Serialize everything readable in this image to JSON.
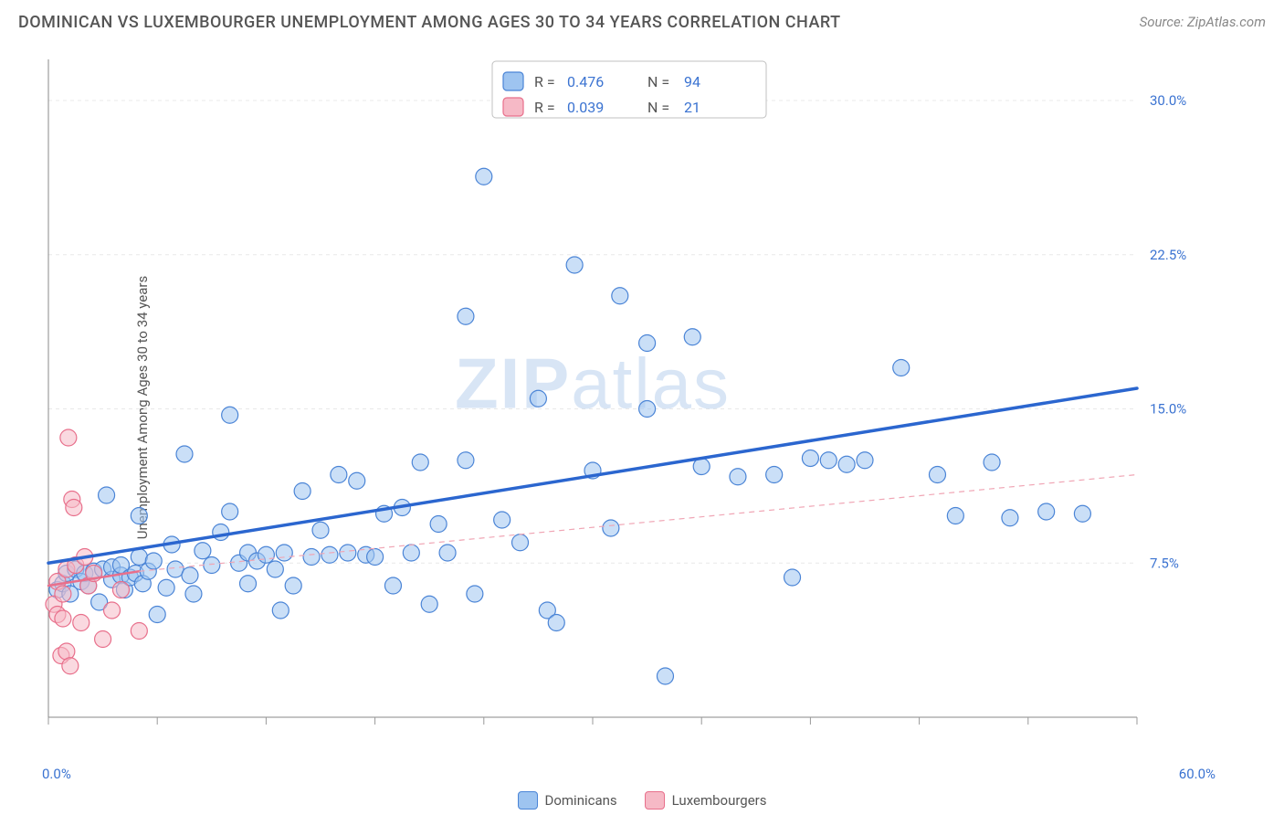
{
  "title": "DOMINICAN VS LUXEMBOURGER UNEMPLOYMENT AMONG AGES 30 TO 34 YEARS CORRELATION CHART",
  "source": "Source: ZipAtlas.com",
  "ylabel": "Unemployment Among Ages 30 to 34 years",
  "watermark": {
    "bold_part": "ZIP",
    "rest": "atlas"
  },
  "chart": {
    "type": "scatter",
    "background_color": "#ffffff",
    "grid_color": "#e8e8e8",
    "axis_color": "#888888",
    "tick_color": "#999999",
    "xlim": [
      0,
      60
    ],
    "ylim": [
      0,
      32
    ],
    "x_ticks_at": [
      0,
      6,
      12,
      18,
      24,
      30,
      36,
      42,
      48,
      54,
      60
    ],
    "y_grid_at": [
      7.5,
      15.0,
      22.5,
      30.0
    ],
    "y_tick_labels": [
      "7.5%",
      "15.0%",
      "22.5%",
      "30.0%"
    ],
    "x_min_label": "0.0%",
    "x_max_label": "60.0%",
    "label_color": "#3b73d1",
    "marker_radius": 9,
    "marker_opacity": 0.55
  },
  "series": [
    {
      "name": "Dominicans",
      "color_fill": "#9ec4f0",
      "color_stroke": "#4a84d6",
      "stat_color": "#3b73d1",
      "R": "0.476",
      "N": "94",
      "trend": {
        "x1": 0,
        "y1": 7.5,
        "x2": 60,
        "y2": 16.0,
        "width": 3.5,
        "dash": "",
        "color": "#2b66cf"
      },
      "points": [
        [
          0.5,
          6.2
        ],
        [
          0.8,
          6.5
        ],
        [
          1.0,
          7.0
        ],
        [
          1.2,
          6.0
        ],
        [
          1.5,
          7.2
        ],
        [
          1.8,
          6.6
        ],
        [
          2.0,
          7.0
        ],
        [
          2.2,
          6.4
        ],
        [
          2.5,
          7.1
        ],
        [
          2.8,
          5.6
        ],
        [
          3.0,
          7.2
        ],
        [
          3.2,
          10.8
        ],
        [
          3.5,
          6.7
        ],
        [
          3.5,
          7.3
        ],
        [
          4.0,
          6.9
        ],
        [
          4.0,
          7.4
        ],
        [
          4.2,
          6.2
        ],
        [
          4.5,
          6.8
        ],
        [
          4.8,
          7.0
        ],
        [
          5.0,
          7.8
        ],
        [
          5.0,
          9.8
        ],
        [
          5.2,
          6.5
        ],
        [
          5.5,
          7.1
        ],
        [
          5.8,
          7.6
        ],
        [
          6.0,
          5.0
        ],
        [
          6.5,
          6.3
        ],
        [
          6.8,
          8.4
        ],
        [
          7.0,
          7.2
        ],
        [
          7.5,
          12.8
        ],
        [
          7.8,
          6.9
        ],
        [
          8.0,
          6.0
        ],
        [
          8.5,
          8.1
        ],
        [
          9.0,
          7.4
        ],
        [
          9.5,
          9.0
        ],
        [
          10.0,
          14.7
        ],
        [
          10.0,
          10.0
        ],
        [
          10.5,
          7.5
        ],
        [
          11.0,
          8.0
        ],
        [
          11.0,
          6.5
        ],
        [
          11.5,
          7.6
        ],
        [
          12.0,
          7.9
        ],
        [
          12.5,
          7.2
        ],
        [
          12.8,
          5.2
        ],
        [
          13.0,
          8.0
        ],
        [
          13.5,
          6.4
        ],
        [
          14.0,
          11.0
        ],
        [
          14.5,
          7.8
        ],
        [
          15.0,
          9.1
        ],
        [
          15.5,
          7.9
        ],
        [
          16.0,
          11.8
        ],
        [
          16.5,
          8.0
        ],
        [
          17.0,
          11.5
        ],
        [
          17.5,
          7.9
        ],
        [
          18.0,
          7.8
        ],
        [
          18.5,
          9.9
        ],
        [
          19.0,
          6.4
        ],
        [
          19.5,
          10.2
        ],
        [
          20.0,
          8.0
        ],
        [
          20.5,
          12.4
        ],
        [
          21.0,
          5.5
        ],
        [
          21.5,
          9.4
        ],
        [
          22.0,
          8.0
        ],
        [
          23.0,
          12.5
        ],
        [
          23.0,
          19.5
        ],
        [
          23.5,
          6.0
        ],
        [
          24.0,
          26.3
        ],
        [
          25.0,
          9.6
        ],
        [
          26.0,
          8.5
        ],
        [
          27.0,
          15.5
        ],
        [
          27.5,
          5.2
        ],
        [
          28.0,
          4.6
        ],
        [
          29.0,
          22.0
        ],
        [
          30.0,
          12.0
        ],
        [
          31.0,
          9.2
        ],
        [
          31.5,
          20.5
        ],
        [
          33.0,
          18.2
        ],
        [
          33.0,
          15.0
        ],
        [
          34.0,
          2.0
        ],
        [
          35.5,
          18.5
        ],
        [
          36.0,
          12.2
        ],
        [
          38.0,
          11.7
        ],
        [
          40.0,
          11.8
        ],
        [
          41.0,
          6.8
        ],
        [
          42.0,
          12.6
        ],
        [
          43.0,
          12.5
        ],
        [
          44.0,
          12.3
        ],
        [
          45.0,
          12.5
        ],
        [
          47.0,
          17.0
        ],
        [
          49.0,
          11.8
        ],
        [
          50.0,
          9.8
        ],
        [
          52.0,
          12.4
        ],
        [
          53.0,
          9.7
        ],
        [
          55.0,
          10.0
        ],
        [
          57.0,
          9.9
        ]
      ]
    },
    {
      "name": "Luxembourgers",
      "color_fill": "#f6b9c6",
      "color_stroke": "#e86f8b",
      "stat_color": "#e86f8b",
      "R": "0.039",
      "N": "21",
      "trend_solid": {
        "x1": 0,
        "y1": 6.4,
        "x2": 5,
        "y2": 7.1,
        "width": 2.5,
        "color": "#e86f8b"
      },
      "trend_dash": {
        "x1": 5,
        "y1": 7.1,
        "x2": 60,
        "y2": 11.8,
        "width": 1.2,
        "dash": "6 5",
        "color": "#f0a6b5"
      },
      "points": [
        [
          0.3,
          5.5
        ],
        [
          0.5,
          5.0
        ],
        [
          0.5,
          6.6
        ],
        [
          0.7,
          3.0
        ],
        [
          0.8,
          4.8
        ],
        [
          0.8,
          6.0
        ],
        [
          1.0,
          3.2
        ],
        [
          1.0,
          7.2
        ],
        [
          1.1,
          13.6
        ],
        [
          1.2,
          2.5
        ],
        [
          1.3,
          10.6
        ],
        [
          1.4,
          10.2
        ],
        [
          1.5,
          7.4
        ],
        [
          1.8,
          4.6
        ],
        [
          2.0,
          7.8
        ],
        [
          2.2,
          6.4
        ],
        [
          2.5,
          7.0
        ],
        [
          3.0,
          3.8
        ],
        [
          3.5,
          5.2
        ],
        [
          4.0,
          6.2
        ],
        [
          5.0,
          4.2
        ]
      ]
    }
  ],
  "stats_box": {
    "border_color": "#c0c0c0",
    "rows": [
      {
        "swatch_fill": "#9ec4f0",
        "swatch_stroke": "#4a84d6",
        "R_label": "R =",
        "R": "0.476",
        "N_label": "N =",
        "N": "94",
        "val_color": "#3b73d1"
      },
      {
        "swatch_fill": "#f6b9c6",
        "swatch_stroke": "#e86f8b",
        "R_label": "R =",
        "R": "0.039",
        "N_label": "N =",
        "N": "21",
        "val_color": "#3b73d1"
      }
    ]
  },
  "bottom_legend": [
    {
      "label": "Dominicans",
      "fill": "#9ec4f0",
      "stroke": "#4a84d6"
    },
    {
      "label": "Luxembourgers",
      "fill": "#f6b9c6",
      "stroke": "#e86f8b"
    }
  ]
}
